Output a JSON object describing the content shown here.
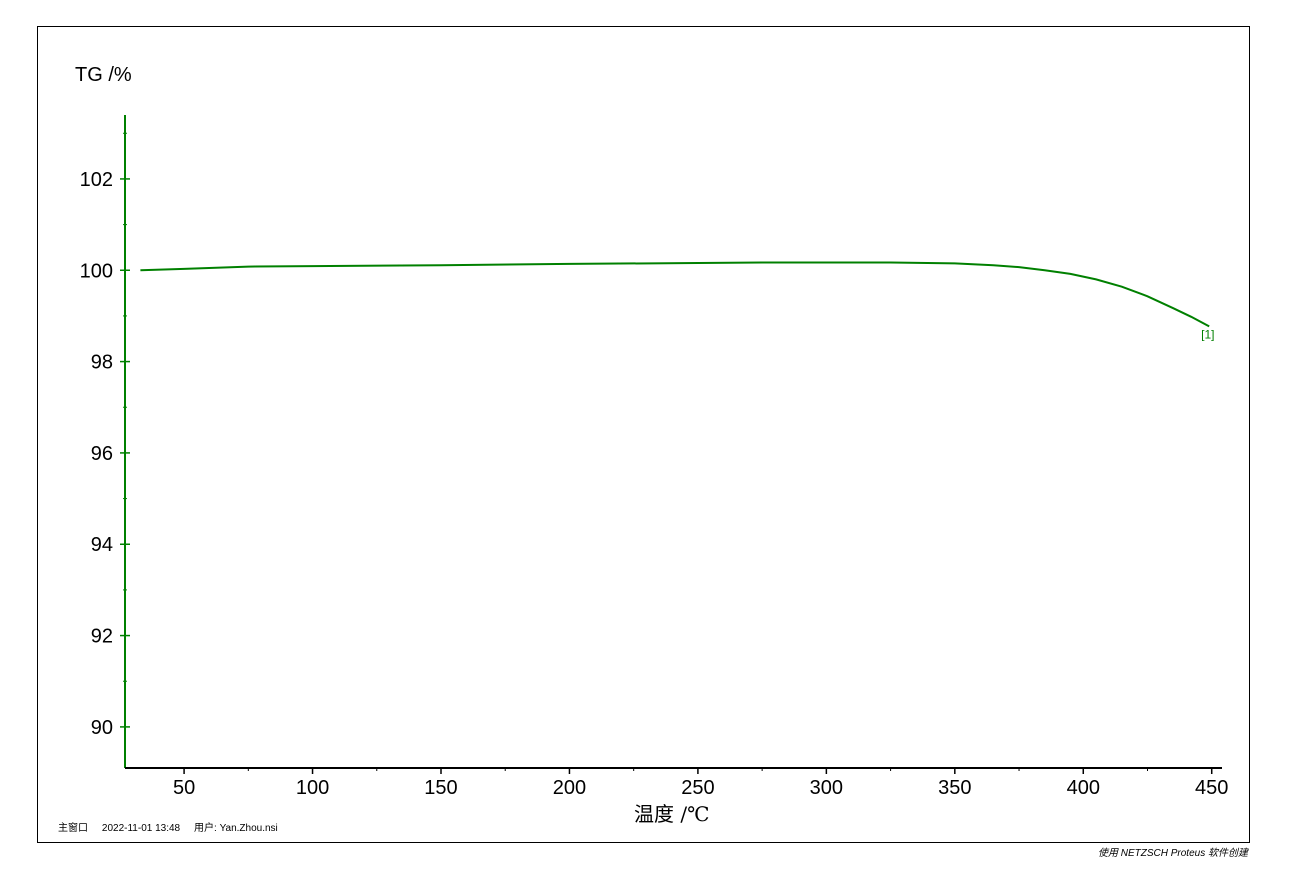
{
  "chart_data": {
    "type": "line",
    "ylabel": "TG /%",
    "xlabel": "温度 /℃",
    "xlim": [
      27,
      454
    ],
    "ylim": [
      89.1,
      103.4
    ],
    "x_ticks": [
      50,
      100,
      150,
      200,
      250,
      300,
      350,
      400,
      450
    ],
    "y_ticks": [
      90,
      92,
      94,
      96,
      98,
      100,
      102
    ],
    "grid": false,
    "series": [
      {
        "label_tag": "[1]",
        "color": "#008000",
        "x": [
          33,
          50,
          75,
          100,
          150,
          200,
          250,
          275,
          300,
          325,
          350,
          365,
          375,
          385,
          395,
          405,
          415,
          425,
          435,
          442,
          449
        ],
        "y": [
          100.0,
          100.03,
          100.08,
          100.09,
          100.11,
          100.14,
          100.16,
          100.17,
          100.17,
          100.17,
          100.15,
          100.11,
          100.07,
          100.0,
          99.92,
          99.8,
          99.64,
          99.43,
          99.17,
          98.98,
          98.77
        ]
      }
    ]
  },
  "footer": {
    "window": "主窗口",
    "datetime": "2022-11-01 13:48",
    "user": "用户: Yan.Zhou.nsi"
  },
  "credit": "使用 NETZSCH Proteus 软件创建",
  "colors": {
    "axis": "#008000",
    "curve": "#008000",
    "frame": "#000000"
  }
}
